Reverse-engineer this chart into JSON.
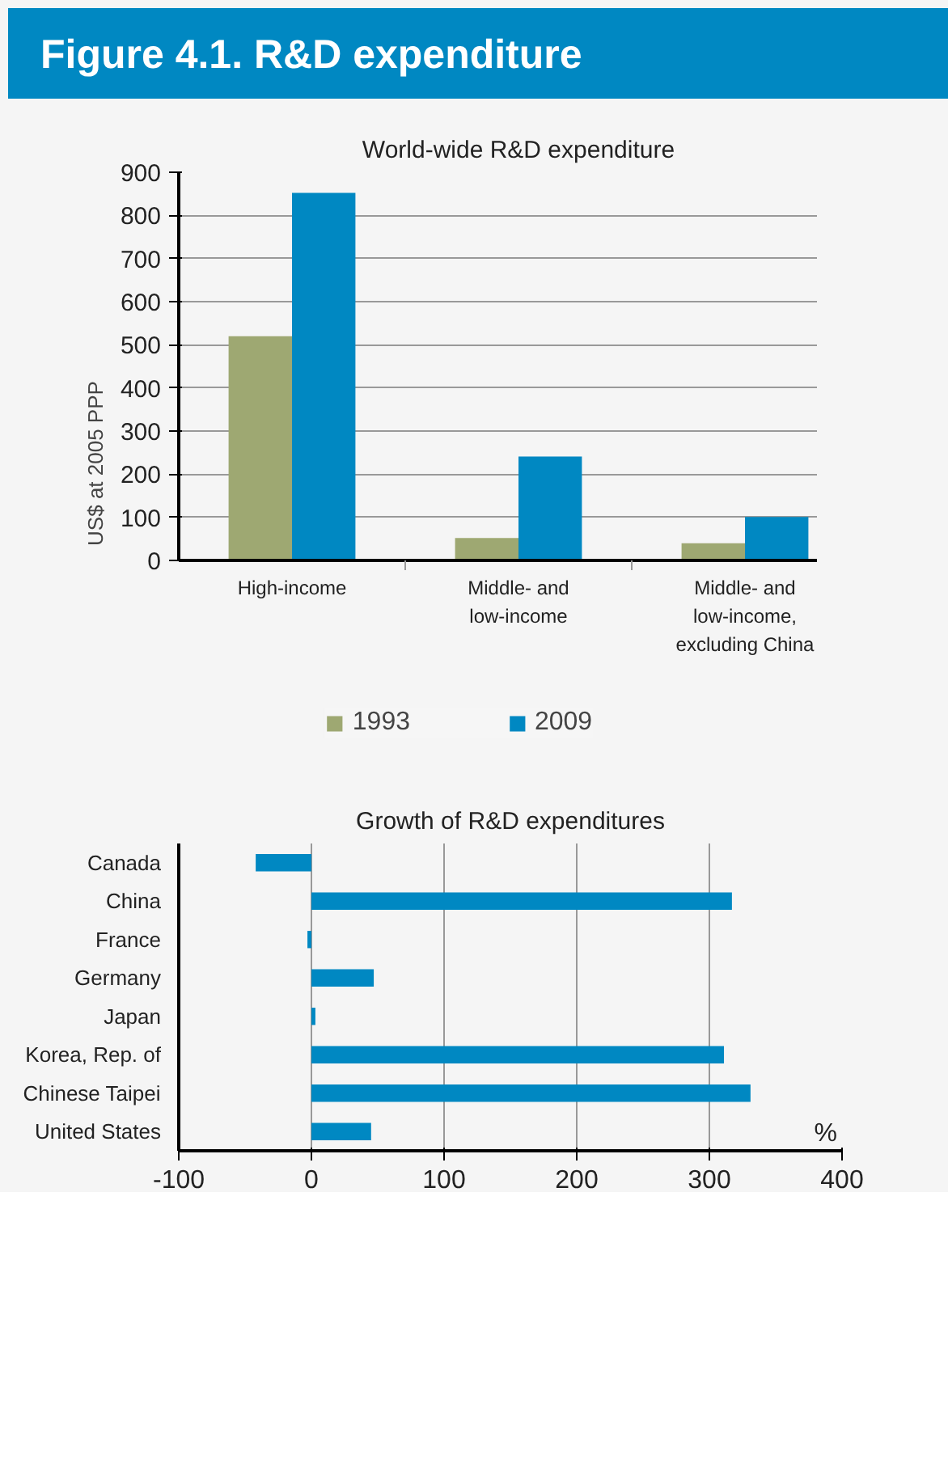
{
  "chart_data": [
    {
      "type": "bar",
      "title": "World-wide R&D expenditure",
      "ylabel": "US$ at 2005 PPP",
      "annotations": [
        "Figure 4.1. R&D expenditure"
      ],
      "categories": [
        "High-income",
        "Middle- and\nlow-income",
        "Middle- and\nlow-income,\nexcluding China"
      ],
      "series": [
        {
          "name": "1993",
          "color": "#9ea872",
          "values": [
            520,
            52,
            40
          ]
        },
        {
          "name": "2009",
          "color": "#0088c2",
          "values": [
            852,
            241,
            101
          ]
        }
      ],
      "ylim": [
        0,
        900
      ],
      "yticks": [
        0,
        100,
        200,
        300,
        400,
        500,
        600,
        700,
        800,
        900
      ],
      "grid": "y",
      "legend": "bottom"
    },
    {
      "type": "bar",
      "orientation": "horizontal",
      "title": "Growth of R&D expenditures",
      "xlabel": "%",
      "categories": [
        "Canada",
        "China",
        "France",
        "Germany",
        "Japan",
        "Korea, Rep. of",
        "Chinese Taipei",
        "United States"
      ],
      "values": [
        -42,
        317,
        -3,
        47,
        3,
        311,
        331,
        45
      ],
      "color": "#0088c2",
      "xlim": [
        -100,
        400
      ],
      "xticks": [
        -100,
        0,
        100,
        200,
        300,
        400
      ],
      "grid": "x"
    }
  ]
}
